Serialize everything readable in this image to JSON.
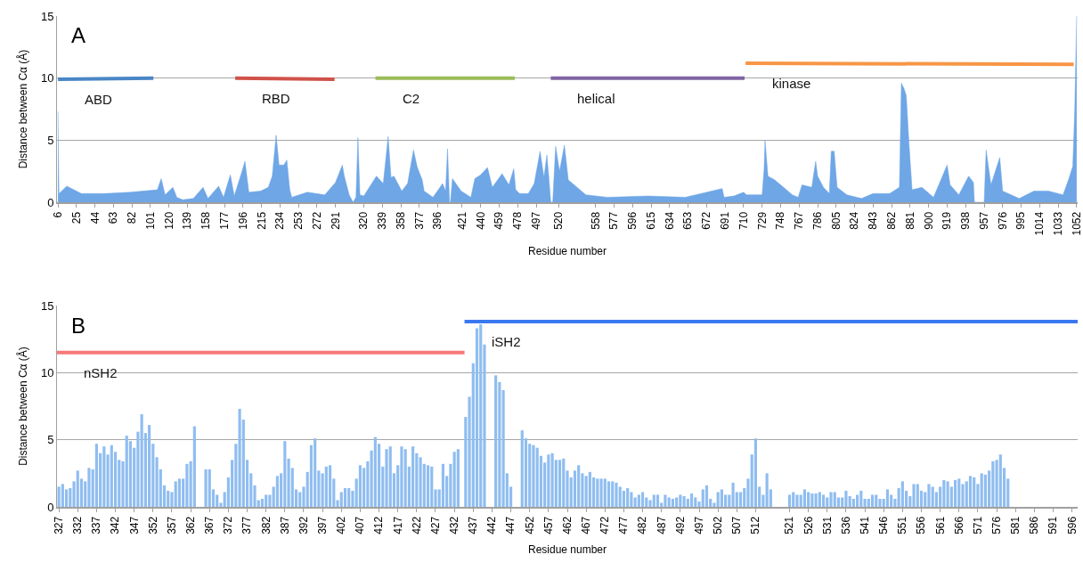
{
  "chart_data": [
    {
      "type": "area",
      "xlabel": "Residue number",
      "ylabel": "Distance between Cα (Å)",
      "xlim": [
        5,
        1053
      ],
      "ylim": [
        0,
        15
      ],
      "yticks": [
        0,
        5,
        10,
        15
      ],
      "grid": "y",
      "xticks": [
        6,
        25,
        44,
        63,
        82,
        101,
        120,
        139,
        158,
        177,
        196,
        215,
        234,
        253,
        272,
        291,
        320,
        339,
        358,
        377,
        396,
        421,
        440,
        459,
        478,
        497,
        520,
        558,
        577,
        596,
        615,
        634,
        653,
        672,
        691,
        710,
        729,
        748,
        767,
        786,
        805,
        824,
        843,
        862,
        881,
        900,
        919,
        938,
        957,
        976,
        995,
        1014,
        1033,
        1052
      ],
      "annotations": [
        "A"
      ],
      "series": [
        {
          "color": "#6ea6e6",
          "x": [
            6,
            7,
            15,
            30,
            54,
            80,
            108,
            112,
            116,
            124,
            128,
            134,
            145,
            155,
            160,
            171,
            176,
            183,
            187,
            195,
            198,
            202,
            214,
            222,
            226,
            230,
            233,
            238,
            241,
            244,
            246,
            262,
            280,
            291,
            298,
            300,
            305,
            309,
            312,
            314,
            316,
            320,
            333,
            340,
            345,
            348,
            351,
            359,
            365,
            371,
            375,
            380,
            382,
            391,
            401,
            404,
            406,
            408,
            409,
            411,
            420,
            430,
            434,
            440,
            447,
            452,
            462,
            469,
            474,
            476,
            480,
            489,
            495,
            501,
            505,
            508,
            510,
            512,
            514,
            517,
            521,
            526,
            530,
            536,
            548,
            570,
            612,
            650,
            688,
            690,
            700,
            710,
            713,
            729,
            731,
            732,
            735,
            742,
            751,
            760,
            766,
            770,
            780,
            784,
            786,
            792,
            798,
            800,
            803,
            806,
            816,
            831,
            843,
            860,
            870,
            872,
            875,
            877,
            880,
            883,
            893,
            905,
            919,
            922,
            931,
            941,
            946,
            947,
            957,
            959,
            964,
            973,
            976,
            993,
            1008,
            1023,
            1038,
            1044,
            1048,
            1050,
            1052
          ],
          "values": [
            7.3,
            0.7,
            1.3,
            0.7,
            0.7,
            0.8,
            1.0,
            1.9,
            0.6,
            1.2,
            0.4,
            0.2,
            0.3,
            1.2,
            0.3,
            1.3,
            0.4,
            2.2,
            0.5,
            2.5,
            3.3,
            0.8,
            0.9,
            1.2,
            2.1,
            5.4,
            3.0,
            3.0,
            3.4,
            1.0,
            0.4,
            0.8,
            0.6,
            1.6,
            3.0,
            2.1,
            0.6,
            0,
            0.4,
            5.2,
            0.6,
            0.5,
            2.1,
            1.5,
            5.3,
            2.0,
            2.1,
            0.9,
            1.5,
            4.2,
            2.8,
            1.8,
            0.9,
            0.4,
            1.5,
            0.9,
            4.3,
            0,
            0,
            1.9,
            0.9,
            0.4,
            1.9,
            2.2,
            2.8,
            1.2,
            2.3,
            1.4,
            2.7,
            1.0,
            0.7,
            0.7,
            1.5,
            4.1,
            2.0,
            3.8,
            2.0,
            0,
            0,
            4.5,
            2.5,
            4.6,
            1.8,
            1.4,
            0.6,
            0.4,
            0.5,
            0.4,
            1.1,
            0.4,
            0.5,
            0.8,
            0.6,
            0.6,
            2.6,
            5.0,
            2.1,
            1.8,
            1.2,
            0.6,
            0.4,
            1.4,
            1.2,
            3.3,
            2.1,
            1.2,
            0.7,
            4.1,
            4.1,
            1.2,
            0.6,
            0.3,
            0.7,
            0.7,
            1.2,
            9.6,
            9.1,
            8.6,
            4.5,
            1.0,
            1.2,
            0.4,
            3.0,
            1.4,
            0.6,
            2.1,
            1.6,
            0,
            0,
            4.2,
            1.4,
            3.6,
            0.9,
            0.3,
            0.9,
            0.9,
            0.6,
            1.9,
            2.9,
            7.4,
            15
          ]
        },
        {
          "type": "line",
          "name": "ABD",
          "color": "#4a86c5",
          "x": [
            6,
            104
          ],
          "values": [
            9.9,
            10
          ]
        },
        {
          "type": "line",
          "name": "RBD",
          "color": "#d0524a",
          "x": [
            188,
            290
          ],
          "values": [
            10,
            9.9
          ]
        },
        {
          "type": "line",
          "name": "C2",
          "color": "#9bbb59",
          "x": [
            332,
            475
          ],
          "values": [
            10,
            10
          ]
        },
        {
          "type": "line",
          "name": "helical",
          "color": "#8064a2",
          "x": [
            512,
            711
          ],
          "values": [
            10,
            10
          ]
        },
        {
          "type": "line",
          "name": "kinase",
          "color": "#f79646",
          "x": [
            712,
            1049
          ],
          "values": [
            11.2,
            11.1
          ]
        }
      ]
    },
    {
      "type": "bar",
      "xlabel": "Residue number",
      "ylabel": "Distance between Cα (Å)",
      "xlim": [
        326.5,
        597.5
      ],
      "ylim": [
        0,
        15
      ],
      "yticks": [
        0,
        5,
        10,
        15
      ],
      "grid": "y",
      "xticks": [
        327,
        332,
        337,
        342,
        347,
        352,
        357,
        362,
        367,
        372,
        377,
        382,
        387,
        392,
        397,
        402,
        407,
        412,
        417,
        422,
        427,
        432,
        437,
        442,
        447,
        452,
        457,
        462,
        467,
        472,
        477,
        482,
        487,
        492,
        497,
        502,
        507,
        512,
        521,
        526,
        531,
        536,
        541,
        546,
        551,
        556,
        561,
        566,
        571,
        576,
        581,
        586,
        591,
        596
      ],
      "annotations": [
        "B"
      ],
      "series": [
        {
          "color": "#8fbdf0",
          "x": [
            327,
            328,
            329,
            330,
            331,
            332,
            333,
            334,
            335,
            336,
            337,
            338,
            339,
            340,
            341,
            342,
            343,
            344,
            345,
            346,
            347,
            348,
            349,
            350,
            351,
            352,
            353,
            354,
            355,
            356,
            357,
            358,
            359,
            360,
            361,
            362,
            363,
            364,
            365,
            366,
            367,
            368,
            369,
            370,
            371,
            372,
            373,
            374,
            375,
            376,
            377,
            378,
            379,
            380,
            381,
            382,
            383,
            384,
            385,
            386,
            387,
            388,
            389,
            390,
            391,
            392,
            393,
            394,
            395,
            396,
            397,
            398,
            399,
            400,
            401,
            402,
            403,
            404,
            405,
            406,
            407,
            408,
            409,
            410,
            411,
            412,
            413,
            414,
            415,
            416,
            417,
            418,
            419,
            420,
            421,
            422,
            423,
            424,
            425,
            426,
            427,
            428,
            429,
            430,
            431,
            432,
            433,
            434,
            435,
            436,
            437,
            438,
            439,
            440,
            441,
            442,
            443,
            444,
            445,
            446,
            447,
            448,
            449,
            450,
            451,
            452,
            453,
            454,
            455,
            456,
            457,
            458,
            459,
            460,
            461,
            462,
            463,
            464,
            465,
            466,
            467,
            468,
            469,
            470,
            471,
            472,
            473,
            474,
            475,
            476,
            477,
            478,
            479,
            480,
            481,
            482,
            483,
            484,
            485,
            486,
            487,
            488,
            489,
            490,
            491,
            492,
            493,
            494,
            495,
            496,
            497,
            498,
            499,
            500,
            501,
            502,
            503,
            504,
            505,
            506,
            507,
            508,
            509,
            510,
            511,
            512,
            513,
            514,
            515,
            516,
            521,
            522,
            523,
            524,
            525,
            526,
            527,
            528,
            529,
            530,
            531,
            532,
            533,
            534,
            535,
            536,
            537,
            538,
            539,
            540,
            541,
            542,
            543,
            544,
            545,
            546,
            547,
            548,
            549,
            550,
            551,
            552,
            553,
            554,
            555,
            556,
            557,
            558,
            559,
            560,
            561,
            562,
            563,
            564,
            565,
            566,
            567,
            568,
            569,
            570,
            571,
            572,
            573,
            574,
            575,
            576,
            577,
            578,
            579
          ],
          "values": [
            1.5,
            1.7,
            1.3,
            1.4,
            1.9,
            2.7,
            2.1,
            1.9,
            2.9,
            2.8,
            4.7,
            4.0,
            4.5,
            3.9,
            4.6,
            4.1,
            3.5,
            3.4,
            5.3,
            4.9,
            4.4,
            5.6,
            6.9,
            5.5,
            6.1,
            4.7,
            3.7,
            2.8,
            1.6,
            1.2,
            1.1,
            1.9,
            2.1,
            2.1,
            3.2,
            3.4,
            6.0,
            null,
            null,
            2.8,
            2.8,
            1.3,
            0.9,
            0.3,
            1.1,
            2.2,
            3.5,
            4.7,
            7.3,
            6.5,
            3.5,
            2.5,
            1.6,
            0.5,
            0.6,
            0.9,
            0.9,
            1.5,
            2.3,
            2.5,
            4.9,
            3.6,
            2.9,
            1.3,
            1.1,
            1.5,
            2.6,
            4.6,
            5.1,
            2.7,
            2.5,
            3.0,
            3.1,
            2.1,
            0.5,
            1.1,
            1.4,
            1.4,
            1.2,
            2.1,
            3.1,
            2.9,
            3.4,
            4.2,
            5.2,
            4.7,
            3.0,
            4.3,
            4.5,
            2.5,
            3.1,
            4.5,
            4.3,
            3.0,
            4.5,
            4.0,
            3.7,
            3.2,
            3.1,
            3.0,
            1.3,
            1.3,
            3.2,
            2.3,
            3.2,
            4.1,
            4.3,
            null,
            6.7,
            8.2,
            10.7,
            13.3,
            13.6,
            12.1,
            null,
            null,
            9.8,
            9.3,
            8.7,
            2.5,
            1.5,
            null,
            null,
            5.7,
            5.1,
            4.7,
            4.6,
            4.4,
            3.8,
            3.3,
            3.9,
            4.0,
            3.5,
            3.5,
            3.6,
            2.7,
            2.2,
            2.7,
            3.1,
            2.5,
            2.3,
            2.6,
            2.2,
            2.1,
            2.1,
            2.1,
            1.9,
            1.9,
            1.8,
            1.5,
            1.2,
            1.4,
            1.1,
            0.7,
            0.9,
            1.1,
            0.7,
            0.5,
            0.9,
            0.9,
            0.3,
            0.9,
            0.7,
            0.6,
            0.7,
            0.9,
            0.8,
            0.6,
            1.0,
            0.7,
            0.4,
            1.3,
            1.6,
            0.6,
            0.3,
            1.1,
            1.3,
            0.9,
            0.9,
            1.8,
            1.1,
            1.1,
            1.4,
            2.1,
            3.9,
            5.1,
            1.5,
            0.9,
            2.5,
            1.3,
            0.9,
            1.1,
            0.9,
            0.9,
            1.3,
            1.1,
            1.0,
            1.0,
            1.1,
            0.9,
            0.7,
            1.1,
            1.1,
            0.7,
            0.7,
            1.2,
            0.8,
            0.6,
            0.9,
            1.2,
            0.6,
            0.6,
            0.9,
            0.9,
            0.6,
            0.6,
            1.3,
            0.9,
            0.6,
            1.4,
            1.9,
            1.2,
            0.8,
            1.7,
            1.7,
            1.2,
            1.1,
            1.7,
            1.5,
            1.1,
            1.5,
            2.0,
            1.9,
            1.5,
            2.0,
            2.1,
            1.7,
            1.9,
            2.3,
            2.2,
            1.7,
            2.5,
            2.4,
            2.7,
            3.4,
            3.5,
            3.9,
            2.9,
            2.1
          ]
        },
        {
          "type": "line",
          "name": "nSH2",
          "color": "#f87878",
          "x": [
            326.5,
            434.7
          ],
          "values": [
            11.5,
            11.5
          ]
        },
        {
          "type": "line",
          "name": "iSH2",
          "color": "#3a78f0",
          "x": [
            434.7,
            597.5
          ],
          "values": [
            13.8,
            13.8
          ]
        }
      ]
    }
  ]
}
